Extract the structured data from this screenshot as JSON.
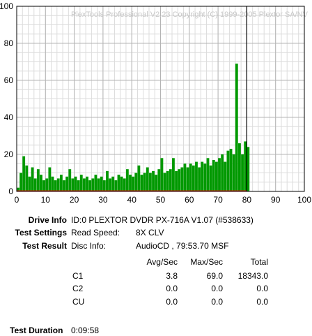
{
  "chart_data": {
    "type": "bar",
    "watermark": "PlexTools Professional V2.23 Copyright (C) 1999-2005 Plextor SA/NV",
    "xlim": [
      0,
      100
    ],
    "ylim": [
      0,
      100
    ],
    "x_ticks": [
      "0",
      "10",
      "20",
      "30",
      "40",
      "50",
      "60",
      "70",
      "80",
      "90",
      "100"
    ],
    "y_ticks": [
      "100",
      "80",
      "60",
      "40",
      "20",
      "0"
    ],
    "grid": true,
    "end_marker_x": 80,
    "series": [
      {
        "color": "#009900",
        "x": [
          0,
          1,
          2,
          3,
          4,
          5,
          6,
          7,
          8,
          9,
          10,
          11,
          12,
          13,
          14,
          15,
          16,
          17,
          18,
          19,
          20,
          21,
          22,
          23,
          24,
          25,
          26,
          27,
          28,
          29,
          30,
          31,
          32,
          33,
          34,
          35,
          36,
          37,
          38,
          39,
          40,
          41,
          42,
          43,
          44,
          45,
          46,
          47,
          48,
          49,
          50,
          51,
          52,
          53,
          54,
          55,
          56,
          57,
          58,
          59,
          60,
          61,
          62,
          63,
          64,
          65,
          66,
          67,
          68,
          69,
          70,
          71,
          72,
          73,
          74,
          75,
          76,
          77,
          78,
          79,
          80
        ],
        "values": [
          2,
          10,
          19,
          14,
          8,
          13,
          7,
          12,
          9,
          6,
          7,
          13,
          8,
          6,
          7,
          9,
          6,
          8,
          12,
          7,
          8,
          6,
          9,
          7,
          8,
          6,
          7,
          9,
          7,
          8,
          6,
          11,
          7,
          8,
          6,
          9,
          8,
          7,
          12,
          9,
          8,
          10,
          14,
          9,
          10,
          13,
          10,
          11,
          9,
          12,
          18,
          10,
          11,
          12,
          18,
          11,
          12,
          13,
          15,
          13,
          15,
          14,
          16,
          13,
          16,
          15,
          18,
          14,
          17,
          16,
          18,
          20,
          16,
          22,
          23,
          20,
          69,
          26,
          20,
          27,
          24
        ]
      }
    ],
    "secondary_series": {
      "color": "#ff0000",
      "value": 0.3
    }
  },
  "info": {
    "drive_info_label": "Drive Info",
    "drive_info_value": "ID:0 PLEXTOR DVDR PX-716A V1.07 (#538633)",
    "test_settings_label": "Test Settings",
    "read_speed_label": "Read Speed:",
    "read_speed_value": "8X CLV",
    "test_result_label": "Test Result",
    "disc_info_label": "Disc Info:",
    "disc_info_value": "AudioCD , 79:53.70 MSF",
    "col_avg": "Avg/Sec",
    "col_max": "Max/Sec",
    "col_total": "Total",
    "rows": [
      {
        "name": "C1",
        "avg": "3.8",
        "max": "69.0",
        "total": "18343.0"
      },
      {
        "name": "C2",
        "avg": "0.0",
        "max": "0.0",
        "total": "0.0"
      },
      {
        "name": "CU",
        "avg": "0.0",
        "max": "0.0",
        "total": "0.0"
      }
    ],
    "test_duration_label": "Test Duration",
    "test_duration_value": "0:09:58"
  }
}
